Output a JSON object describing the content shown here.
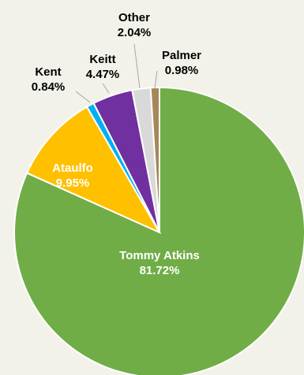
{
  "chart_data": {
    "type": "pie",
    "title": "",
    "start_angle_deg": 0,
    "direction": "clockwise",
    "slices": [
      {
        "label": "Tommy Atkins",
        "pct_label": "81.72%",
        "value": 81.72,
        "color": "#70ad47",
        "label_color": "#ffffff"
      },
      {
        "label": "Ataulfo",
        "pct_label": "9.95%",
        "value": 9.95,
        "color": "#ffc000",
        "label_color": "#ffffff"
      },
      {
        "label": "Kent",
        "pct_label": "0.84%",
        "value": 0.84,
        "color": "#00b0f0",
        "label_color": "#000000"
      },
      {
        "label": "Keitt",
        "pct_label": "4.47%",
        "value": 4.47,
        "color": "#7030a0",
        "label_color": "#000000"
      },
      {
        "label": "Other",
        "pct_label": "2.04%",
        "value": 2.04,
        "color": "#d9d9d9",
        "label_color": "#000000"
      },
      {
        "label": "Palmer",
        "pct_label": "0.98%",
        "value": 0.98,
        "color": "#a5875a",
        "label_color": "#000000"
      }
    ],
    "slice_border_color": "#ffffff",
    "leader_line_color": "#a6a6a6"
  }
}
